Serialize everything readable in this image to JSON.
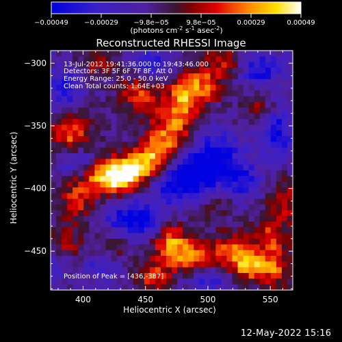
{
  "chart_data": {
    "type": "heatmap",
    "title": "Reconstructed RHESSI Image",
    "xlabel": "Heliocentric X (arcsec)",
    "ylabel": "Heliocentric Y (arcsec)",
    "xlim": [
      374,
      568
    ],
    "ylim": [
      -481,
      -290
    ],
    "xticks": [
      400,
      450,
      500,
      550
    ],
    "yticks": [
      -300,
      -350,
      -400,
      -450
    ],
    "annotations": [
      "13-Jul-2012 19:41:36.000 to 19:43:46.000",
      "Detectors: 3F 5F 6F 7F 8F, Att 0",
      "Energy Range: 25.0 - 50.0 keV",
      "Clean     Total counts: 1.64E+03",
      "Position of Peak = [436,-387]"
    ],
    "colorbar": {
      "ticks": [
        "-0.00049",
        "-0.00029",
        "-9.8e-05",
        "9.8e-05",
        "0.00029",
        "0.00049"
      ],
      "range": [
        -0.00049,
        0.00049
      ],
      "label_text": "(photons cm",
      "label_sup1": "-2",
      "label_mid": " s",
      "label_sup2": "-1",
      "label_end": " asec",
      "label_sup3": "-2",
      "label_close": ")"
    },
    "peak": [
      436,
      -387
    ],
    "grid_nx": 44,
    "grid_ny": 42,
    "blobs": [
      {
        "x": 436,
        "y": -387,
        "sx": 14,
        "sy": 9,
        "a": 1.0
      },
      {
        "x": 420,
        "y": -392,
        "sx": 16,
        "sy": 9,
        "a": 0.85
      },
      {
        "x": 455,
        "y": -375,
        "sx": 12,
        "sy": 10,
        "a": 0.8
      },
      {
        "x": 470,
        "y": -355,
        "sx": 12,
        "sy": 14,
        "a": 0.75
      },
      {
        "x": 480,
        "y": -330,
        "sx": 10,
        "sy": 12,
        "a": 0.7
      },
      {
        "x": 495,
        "y": -318,
        "sx": 12,
        "sy": 10,
        "a": 0.65
      },
      {
        "x": 445,
        "y": -325,
        "sx": 12,
        "sy": 10,
        "a": 0.6
      },
      {
        "x": 390,
        "y": -355,
        "sx": 12,
        "sy": 12,
        "a": 0.75
      },
      {
        "x": 395,
        "y": -410,
        "sx": 10,
        "sy": 12,
        "a": 0.55
      },
      {
        "x": 385,
        "y": -445,
        "sx": 12,
        "sy": 10,
        "a": 0.45
      },
      {
        "x": 470,
        "y": -445,
        "sx": 10,
        "sy": 12,
        "a": 0.85
      },
      {
        "x": 490,
        "y": -455,
        "sx": 12,
        "sy": 10,
        "a": 0.7
      },
      {
        "x": 455,
        "y": -470,
        "sx": 10,
        "sy": 8,
        "a": 0.6
      },
      {
        "x": 520,
        "y": -450,
        "sx": 10,
        "sy": 10,
        "a": 0.75
      },
      {
        "x": 535,
        "y": -462,
        "sx": 10,
        "sy": 8,
        "a": 0.85
      },
      {
        "x": 550,
        "y": -440,
        "sx": 10,
        "sy": 10,
        "a": 0.6
      },
      {
        "x": 555,
        "y": -465,
        "sx": 8,
        "sy": 10,
        "a": 0.6
      },
      {
        "x": 515,
        "y": -300,
        "sx": 12,
        "sy": 10,
        "a": 0.55
      },
      {
        "x": 560,
        "y": -410,
        "sx": 10,
        "sy": 14,
        "a": 0.5
      },
      {
        "x": 540,
        "y": -335,
        "sx": 10,
        "sy": 10,
        "a": 0.4
      },
      {
        "x": 410,
        "y": -300,
        "sx": 14,
        "sy": 8,
        "a": 0.35
      },
      {
        "x": 505,
        "y": -410,
        "sx": 10,
        "sy": 10,
        "a": 0.4
      },
      {
        "x": 425,
        "y": -445,
        "sx": 10,
        "sy": 10,
        "a": 0.35
      },
      {
        "x": 400,
        "y": -470,
        "sx": 10,
        "sy": 8,
        "a": 0.3
      },
      {
        "x": 480,
        "y": -395,
        "sx": 20,
        "sy": 12,
        "a": -0.9
      },
      {
        "x": 505,
        "y": -375,
        "sx": 16,
        "sy": 14,
        "a": -0.8
      },
      {
        "x": 440,
        "y": -425,
        "sx": 16,
        "sy": 10,
        "a": -0.85
      },
      {
        "x": 385,
        "y": -320,
        "sx": 10,
        "sy": 14,
        "a": -0.6
      },
      {
        "x": 540,
        "y": -305,
        "sx": 14,
        "sy": 10,
        "a": -0.7
      },
      {
        "x": 555,
        "y": -355,
        "sx": 10,
        "sy": 14,
        "a": -0.7
      },
      {
        "x": 395,
        "y": -380,
        "sx": 10,
        "sy": 8,
        "a": -0.5
      },
      {
        "x": 410,
        "y": -465,
        "sx": 14,
        "sy": 10,
        "a": -0.55
      },
      {
        "x": 530,
        "y": -395,
        "sx": 12,
        "sy": 10,
        "a": -0.5
      },
      {
        "x": 455,
        "y": -300,
        "sx": 12,
        "sy": 8,
        "a": -0.55
      },
      {
        "x": 500,
        "y": -472,
        "sx": 12,
        "sy": 8,
        "a": -0.5
      },
      {
        "x": 375,
        "y": -460,
        "sx": 8,
        "sy": 10,
        "a": -0.5
      }
    ]
  },
  "footer": {
    "date": "12-May-2022 15:16"
  },
  "colors": {
    "background": "#000000",
    "text": "#ffffff"
  }
}
